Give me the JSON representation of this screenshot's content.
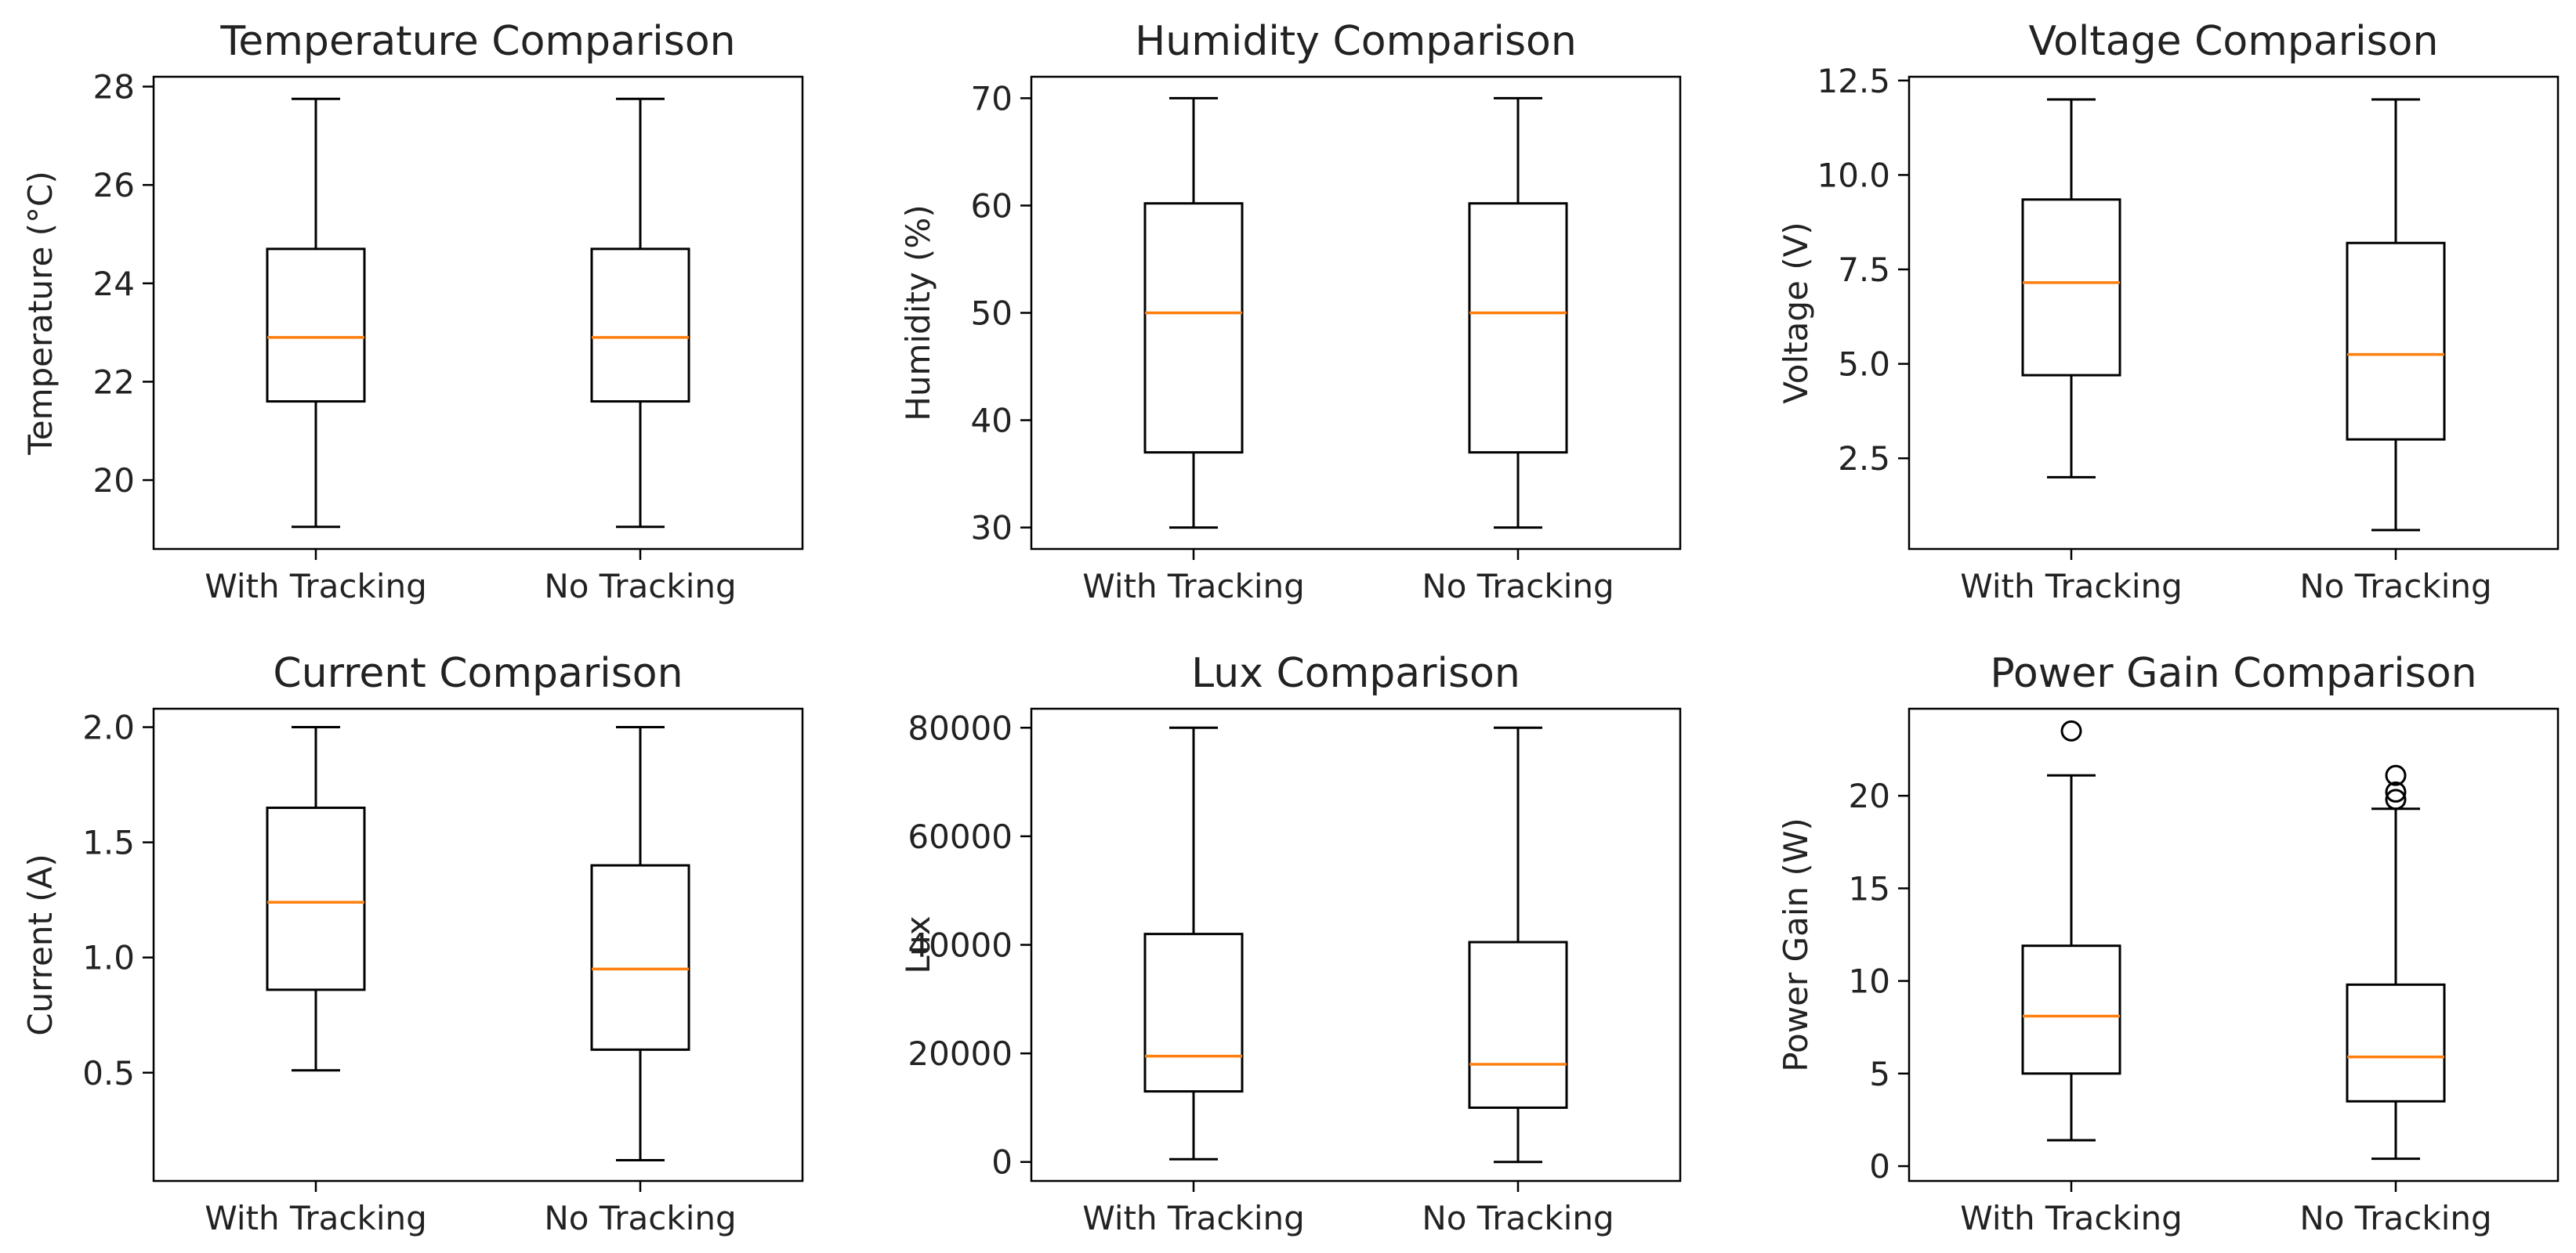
{
  "colors": {
    "box": "#000000",
    "median": "#ff7f0e",
    "background": "#ffffff"
  },
  "chart_data": [
    {
      "type": "box",
      "title": "Temperature Comparison",
      "ylabel": "Temperature (°C)",
      "categories": [
        "With Tracking",
        "No Tracking"
      ],
      "ylim": [
        18.6,
        28.2
      ],
      "yticks": [
        20,
        22,
        24,
        26,
        28
      ],
      "ytick_labels": [
        "20",
        "22",
        "24",
        "26",
        "28"
      ],
      "boxes": [
        {
          "whislo": 19.05,
          "q1": 21.6,
          "med": 22.9,
          "q3": 24.7,
          "whishi": 27.75,
          "fliers": []
        },
        {
          "whislo": 19.05,
          "q1": 21.6,
          "med": 22.9,
          "q3": 24.7,
          "whishi": 27.75,
          "fliers": []
        }
      ]
    },
    {
      "type": "box",
      "title": "Humidity Comparison",
      "ylabel": "Humidity (%)",
      "categories": [
        "With Tracking",
        "No Tracking"
      ],
      "ylim": [
        28,
        72
      ],
      "yticks": [
        30,
        40,
        50,
        60,
        70
      ],
      "ytick_labels": [
        "30",
        "40",
        "50",
        "60",
        "70"
      ],
      "boxes": [
        {
          "whislo": 30,
          "q1": 37,
          "med": 50,
          "q3": 60.2,
          "whishi": 70,
          "fliers": []
        },
        {
          "whislo": 30,
          "q1": 37,
          "med": 50,
          "q3": 60.2,
          "whishi": 70,
          "fliers": []
        }
      ]
    },
    {
      "type": "box",
      "title": "Voltage Comparison",
      "ylabel": "Voltage (V)",
      "categories": [
        "With Tracking",
        "No Tracking"
      ],
      "ylim": [
        0.1,
        12.6
      ],
      "yticks": [
        2.5,
        5.0,
        7.5,
        10.0,
        12.5
      ],
      "ytick_labels": [
        "2.5",
        "5.0",
        "7.5",
        "10.0",
        "12.5"
      ],
      "boxes": [
        {
          "whislo": 2.0,
          "q1": 4.7,
          "med": 7.15,
          "q3": 9.35,
          "whishi": 12.0,
          "fliers": []
        },
        {
          "whislo": 0.6,
          "q1": 3.0,
          "med": 5.25,
          "q3": 8.2,
          "whishi": 12.0,
          "fliers": []
        }
      ]
    },
    {
      "type": "box",
      "title": "Current Comparison",
      "ylabel": "Current (A)",
      "categories": [
        "With Tracking",
        "No Tracking"
      ],
      "ylim": [
        0.03,
        2.08
      ],
      "yticks": [
        0.5,
        1.0,
        1.5,
        2.0
      ],
      "ytick_labels": [
        "0.5",
        "1.0",
        "1.5",
        "2.0"
      ],
      "boxes": [
        {
          "whislo": 0.51,
          "q1": 0.86,
          "med": 1.24,
          "q3": 1.65,
          "whishi": 2.0,
          "fliers": []
        },
        {
          "whislo": 0.12,
          "q1": 0.6,
          "med": 0.95,
          "q3": 1.4,
          "whishi": 2.0,
          "fliers": []
        }
      ]
    },
    {
      "type": "box",
      "title": "Lux Comparison",
      "ylabel": "Lux",
      "categories": [
        "With Tracking",
        "No Tracking"
      ],
      "ylim": [
        -3500,
        83500
      ],
      "yticks": [
        0,
        20000,
        40000,
        60000,
        80000
      ],
      "ytick_labels": [
        "0",
        "20000",
        "40000",
        "60000",
        "80000"
      ],
      "boxes": [
        {
          "whislo": 500,
          "q1": 13000,
          "med": 19500,
          "q3": 42000,
          "whishi": 80000,
          "fliers": []
        },
        {
          "whislo": 0,
          "q1": 10000,
          "med": 18000,
          "q3": 40500,
          "whishi": 80000,
          "fliers": []
        }
      ]
    },
    {
      "type": "box",
      "title": "Power Gain Comparison",
      "ylabel": "Power Gain (W)",
      "categories": [
        "With Tracking",
        "No Tracking"
      ],
      "ylim": [
        -0.8,
        24.7
      ],
      "yticks": [
        0,
        5,
        10,
        15,
        20
      ],
      "ytick_labels": [
        "0",
        "5",
        "10",
        "15",
        "20"
      ],
      "boxes": [
        {
          "whislo": 1.4,
          "q1": 5.0,
          "med": 8.1,
          "q3": 11.9,
          "whishi": 21.1,
          "fliers": [
            23.5
          ]
        },
        {
          "whislo": 0.4,
          "q1": 3.5,
          "med": 5.9,
          "q3": 9.8,
          "whishi": 19.3,
          "fliers": [
            19.8,
            20.2,
            21.1
          ]
        }
      ]
    }
  ]
}
